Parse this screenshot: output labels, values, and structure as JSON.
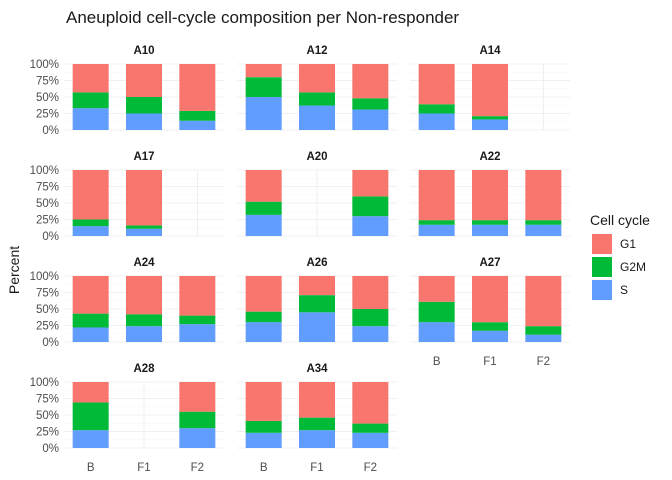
{
  "chart_data": {
    "type": "bar",
    "stacked": true,
    "title": "Aneuploid cell-cycle composition per Non-responder",
    "xlabel": "",
    "ylabel": "Percent",
    "ylim": [
      0,
      100
    ],
    "y_ticks": [
      "0%",
      "25%",
      "50%",
      "75%",
      "100%"
    ],
    "categories": [
      "B",
      "F1",
      "F2"
    ],
    "legend": {
      "title": "Cell cycle",
      "position": "right",
      "items": [
        {
          "name": "G1",
          "color": "#F8766D"
        },
        {
          "name": "G2M",
          "color": "#00BA38"
        },
        {
          "name": "S",
          "color": "#619CFF"
        }
      ]
    },
    "grid": true,
    "facets": [
      {
        "name": "A10",
        "bars": [
          {
            "x": "B",
            "S": 33,
            "G2M": 24,
            "G1": 43
          },
          {
            "x": "F1",
            "S": 25,
            "G2M": 25,
            "G1": 50
          },
          {
            "x": "F2",
            "S": 14,
            "G2M": 15,
            "G1": 71
          }
        ]
      },
      {
        "name": "A12",
        "bars": [
          {
            "x": "B",
            "S": 50,
            "G2M": 30,
            "G1": 20
          },
          {
            "x": "F1",
            "S": 37,
            "G2M": 20,
            "G1": 43
          },
          {
            "x": "F2",
            "S": 31,
            "G2M": 17,
            "G1": 52
          }
        ]
      },
      {
        "name": "A14",
        "bars": [
          {
            "x": "B",
            "S": 25,
            "G2M": 14,
            "G1": 61
          },
          {
            "x": "F1",
            "S": 16,
            "G2M": 5,
            "G1": 79
          }
        ]
      },
      {
        "name": "A17",
        "bars": [
          {
            "x": "B",
            "S": 15,
            "G2M": 10,
            "G1": 75
          },
          {
            "x": "F1",
            "S": 11,
            "G2M": 5,
            "G1": 84
          }
        ]
      },
      {
        "name": "A20",
        "bars": [
          {
            "x": "B",
            "S": 32,
            "G2M": 20,
            "G1": 48
          },
          {
            "x": "F2",
            "S": 30,
            "G2M": 30,
            "G1": 40
          }
        ]
      },
      {
        "name": "A22",
        "bars": [
          {
            "x": "B",
            "S": 17,
            "G2M": 7,
            "G1": 76
          },
          {
            "x": "F1",
            "S": 17,
            "G2M": 7,
            "G1": 76
          },
          {
            "x": "F2",
            "S": 17,
            "G2M": 7,
            "G1": 76
          }
        ]
      },
      {
        "name": "A24",
        "bars": [
          {
            "x": "B",
            "S": 22,
            "G2M": 21,
            "G1": 57
          },
          {
            "x": "F1",
            "S": 24,
            "G2M": 18,
            "G1": 58
          },
          {
            "x": "F2",
            "S": 27,
            "G2M": 13,
            "G1": 60
          }
        ]
      },
      {
        "name": "A26",
        "bars": [
          {
            "x": "B",
            "S": 30,
            "G2M": 16,
            "G1": 54
          },
          {
            "x": "F1",
            "S": 45,
            "G2M": 26,
            "G1": 29
          },
          {
            "x": "F2",
            "S": 24,
            "G2M": 26,
            "G1": 50
          }
        ]
      },
      {
        "name": "A27",
        "bars": [
          {
            "x": "B",
            "S": 30,
            "G2M": 31,
            "G1": 39
          },
          {
            "x": "F1",
            "S": 17,
            "G2M": 13,
            "G1": 70
          },
          {
            "x": "F2",
            "S": 11,
            "G2M": 13,
            "G1": 76
          }
        ]
      },
      {
        "name": "A28",
        "bars": [
          {
            "x": "B",
            "S": 27,
            "G2M": 42,
            "G1": 31
          },
          {
            "x": "F2",
            "S": 30,
            "G2M": 25,
            "G1": 45
          }
        ]
      },
      {
        "name": "A34",
        "bars": [
          {
            "x": "B",
            "S": 23,
            "G2M": 18,
            "G1": 59
          },
          {
            "x": "F1",
            "S": 27,
            "G2M": 19,
            "G1": 54
          },
          {
            "x": "F2",
            "S": 23,
            "G2M": 14,
            "G1": 63
          }
        ]
      }
    ]
  }
}
